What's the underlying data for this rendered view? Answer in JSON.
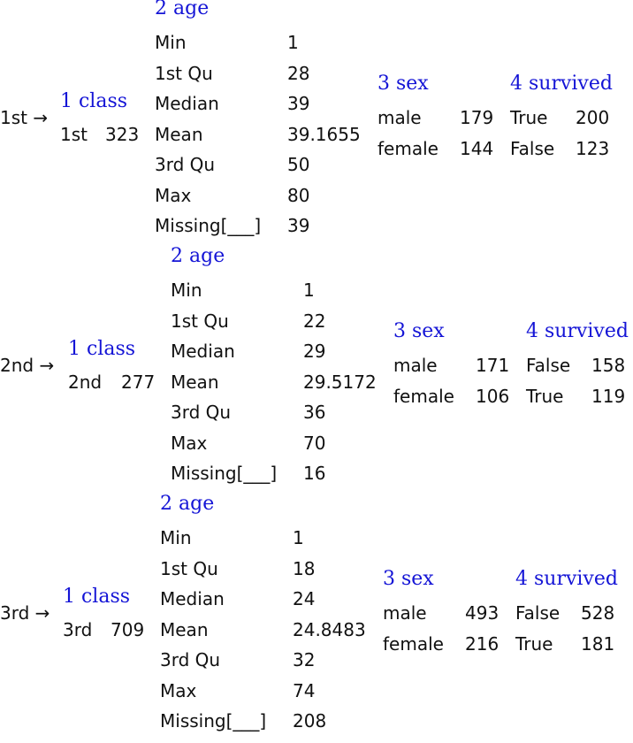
{
  "groups": [
    {
      "key": "1st",
      "arrow": "→",
      "class_header": "1 class",
      "class_value": "1st",
      "class_count": "323",
      "age_header": "2 age",
      "age_stats": [
        {
          "label": "Min",
          "value": "1"
        },
        {
          "label": "1st Qu",
          "value": "28"
        },
        {
          "label": "Median",
          "value": "39"
        },
        {
          "label": "Mean",
          "value": "39.1655"
        },
        {
          "label": "3rd Qu",
          "value": "50"
        },
        {
          "label": "Max",
          "value": "80"
        },
        {
          "label": "Missing[___]",
          "value": "39"
        }
      ],
      "sex_header": "3 sex",
      "sex_rows": [
        {
          "label": "male",
          "value": "179"
        },
        {
          "label": "female",
          "value": "144"
        }
      ],
      "survived_header": "4 survived",
      "survived_rows": [
        {
          "label": "True",
          "value": "200"
        },
        {
          "label": "False",
          "value": "123"
        }
      ]
    },
    {
      "key": "2nd",
      "arrow": "→",
      "class_header": "1 class",
      "class_value": "2nd",
      "class_count": "277",
      "age_header": "2 age",
      "age_stats": [
        {
          "label": "Min",
          "value": "1"
        },
        {
          "label": "1st Qu",
          "value": "22"
        },
        {
          "label": "Median",
          "value": "29"
        },
        {
          "label": "Mean",
          "value": "29.5172"
        },
        {
          "label": "3rd Qu",
          "value": "36"
        },
        {
          "label": "Max",
          "value": "70"
        },
        {
          "label": "Missing[___]",
          "value": "16"
        }
      ],
      "sex_header": "3 sex",
      "sex_rows": [
        {
          "label": "male",
          "value": "171"
        },
        {
          "label": "female",
          "value": "106"
        }
      ],
      "survived_header": "4 survived",
      "survived_rows": [
        {
          "label": "False",
          "value": "158"
        },
        {
          "label": "True",
          "value": "119"
        }
      ]
    },
    {
      "key": "3rd",
      "arrow": "→",
      "class_header": "1 class",
      "class_value": "3rd",
      "class_count": "709",
      "age_header": "2 age",
      "age_stats": [
        {
          "label": "Min",
          "value": "1"
        },
        {
          "label": "1st Qu",
          "value": "18"
        },
        {
          "label": "Median",
          "value": "24"
        },
        {
          "label": "Mean",
          "value": "24.8483"
        },
        {
          "label": "3rd Qu",
          "value": "32"
        },
        {
          "label": "Max",
          "value": "74"
        },
        {
          "label": "Missing[___]",
          "value": "208"
        }
      ],
      "sex_header": "3 sex",
      "sex_rows": [
        {
          "label": "male",
          "value": "493"
        },
        {
          "label": "female",
          "value": "216"
        }
      ],
      "survived_header": "4 survived",
      "survived_rows": [
        {
          "label": "False",
          "value": "528"
        },
        {
          "label": "True",
          "value": "181"
        }
      ]
    }
  ],
  "colors": {
    "header": "#1414d6",
    "text": "#111111"
  }
}
